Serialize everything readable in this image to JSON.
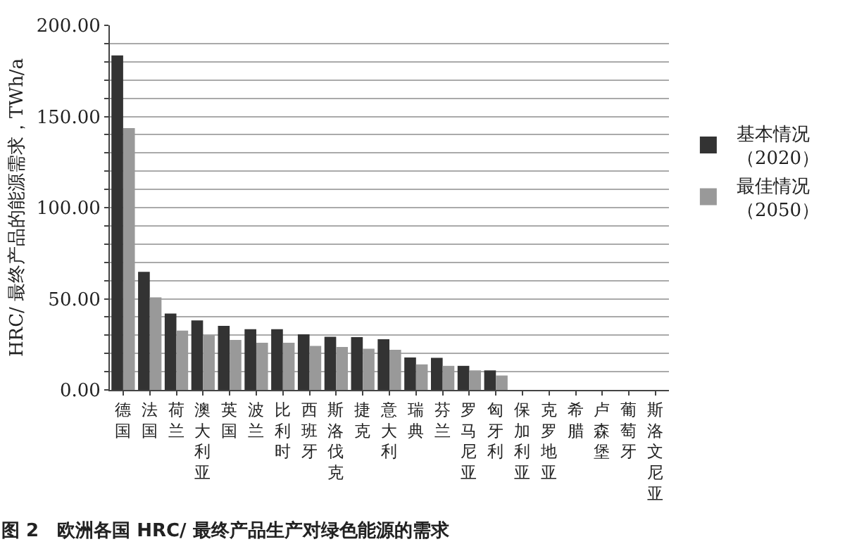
{
  "chart_data": {
    "type": "bar",
    "title": "图 2　欧洲各国 HRC/ 最终产品生产对绿色能源的需求",
    "ylabel": "HRC/ 最终产品的能源需求，TWh/a",
    "categories": [
      "德国",
      "法国",
      "荷兰",
      "澳大利亚",
      "英国",
      "波兰",
      "比利时",
      "西班牙",
      "斯洛伐克",
      "捷克",
      "意大利",
      "瑞典",
      "芬兰",
      "罗马尼亚",
      "匈牙利",
      "保加利亚",
      "克罗地亚",
      "希腊",
      "卢森堡",
      "葡萄牙",
      "斯洛文尼亚"
    ],
    "series": [
      {
        "name": "基本情况（2020）",
        "color": "#333333",
        "values": [
          183.5,
          64.8,
          41.9,
          38.1,
          35.1,
          33.3,
          33.3,
          30.5,
          29.2,
          29.0,
          27.8,
          17.8,
          17.6,
          13.2,
          10.7,
          0,
          0,
          0,
          0,
          0,
          0
        ]
      },
      {
        "name": "最佳情况（2050）",
        "color": "#999999",
        "values": [
          143.6,
          50.8,
          32.5,
          30.0,
          27.4,
          25.9,
          25.9,
          24.1,
          23.6,
          22.6,
          22.0,
          14.0,
          13.2,
          10.7,
          7.9,
          0,
          0,
          0,
          0,
          0,
          0
        ]
      }
    ],
    "ylim": [
      0,
      200
    ],
    "yticks": [
      {
        "value": 0,
        "label": "0.00"
      },
      {
        "value": 10,
        "label": null
      },
      {
        "value": 20,
        "label": null
      },
      {
        "value": 30,
        "label": null
      },
      {
        "value": 40,
        "label": null
      },
      {
        "value": 50,
        "label": "50.00"
      },
      {
        "value": 60,
        "label": null
      },
      {
        "value": 70,
        "label": null
      },
      {
        "value": 80,
        "label": null
      },
      {
        "value": 90,
        "label": null
      },
      {
        "value": 100,
        "label": "100.00"
      },
      {
        "value": 110,
        "label": null
      },
      {
        "value": 120,
        "label": null
      },
      {
        "value": 130,
        "label": null
      },
      {
        "value": 140,
        "label": null
      },
      {
        "value": 150,
        "label": "150.00"
      },
      {
        "value": 160,
        "label": null
      },
      {
        "value": 170,
        "label": null
      },
      {
        "value": 180,
        "label": null
      },
      {
        "value": 190,
        "label": null
      },
      {
        "value": 200,
        "label": "200.00"
      }
    ],
    "grid": "y",
    "legend": "right"
  }
}
